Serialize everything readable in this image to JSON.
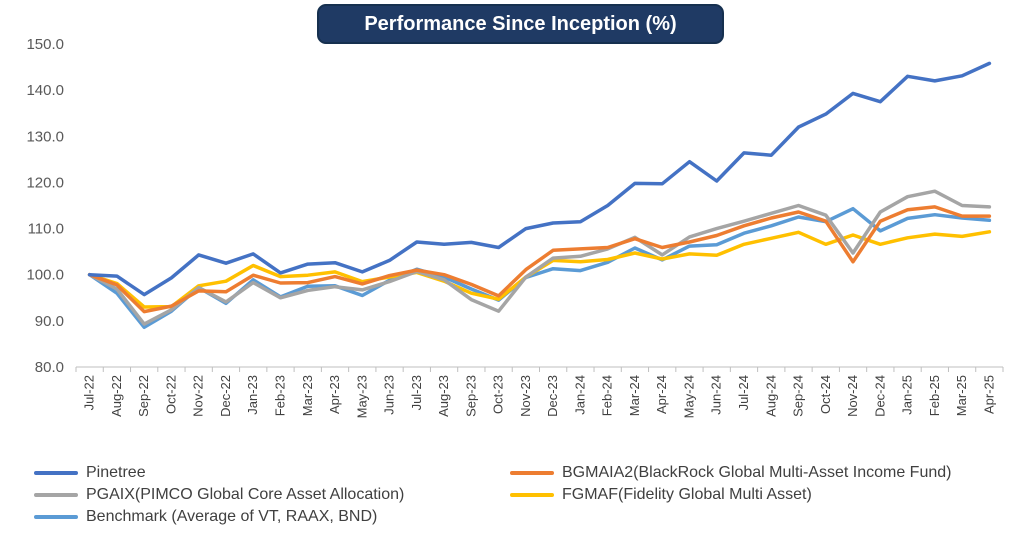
{
  "title": "Performance Since Inception (%)",
  "chart_data": {
    "type": "line",
    "title": "Performance Since Inception (%)",
    "xlabel": "",
    "ylabel": "",
    "ylim": [
      80,
      150
    ],
    "yticks": [
      "80.0",
      "90.0",
      "100.0",
      "110.0",
      "120.0",
      "130.0",
      "140.0",
      "150.0"
    ],
    "grid": false,
    "legend_position": "bottom",
    "categories": [
      "Jul-22",
      "Aug-22",
      "Sep-22",
      "Oct-22",
      "Nov-22",
      "Dec-22",
      "Jan-23",
      "Feb-23",
      "Mar-23",
      "Apr-23",
      "May-23",
      "Jun-23",
      "Jul-23",
      "Aug-23",
      "Sep-23",
      "Oct-23",
      "Nov-23",
      "Dec-23",
      "Jan-24",
      "Feb-24",
      "Mar-24",
      "Apr-24",
      "May-24",
      "Jun-24",
      "Jul-24",
      "Aug-24",
      "Sep-24",
      "Oct-24",
      "Nov-24",
      "Dec-24",
      "Jan-25",
      "Feb-25",
      "Mar-25",
      "Apr-25"
    ],
    "series": [
      {
        "name": "Pinetree",
        "color": "#4472c4",
        "values": [
          100.0,
          99.7,
          95.7,
          99.3,
          104.3,
          102.5,
          104.5,
          100.4,
          102.3,
          102.6,
          100.6,
          103.1,
          107.1,
          106.6,
          107.0,
          105.9,
          110.0,
          111.2,
          111.5,
          115.0,
          119.8,
          119.7,
          124.5,
          120.3,
          126.4,
          125.9,
          132.0,
          134.8,
          139.3,
          137.5,
          143.0,
          142.0,
          143.1,
          145.8
        ]
      },
      {
        "name": "BGMAIA2(BlackRock Global Multi-Asset Income Fund)",
        "color": "#ed7d31",
        "values": [
          100.0,
          97.8,
          92.0,
          93.2,
          96.5,
          96.3,
          99.9,
          98.2,
          98.3,
          99.6,
          98.0,
          99.8,
          101.0,
          100.0,
          97.9,
          95.4,
          101.1,
          105.3,
          105.6,
          105.9,
          107.8,
          105.9,
          107.1,
          108.5,
          110.6,
          112.3,
          113.6,
          111.6,
          102.8,
          111.6,
          114.1,
          114.7,
          112.7,
          112.7
        ]
      },
      {
        "name": "PGAIX(PIMCO Global Core Asset Allocation)",
        "color": "#a5a5a5",
        "values": [
          100.0,
          96.9,
          89.3,
          92.4,
          97.2,
          94.1,
          98.3,
          95.0,
          96.6,
          97.4,
          96.7,
          98.5,
          100.7,
          98.9,
          94.6,
          92.1,
          99.5,
          103.6,
          104.0,
          105.6,
          108.1,
          104.3,
          108.2,
          110.0,
          111.6,
          113.3,
          115.0,
          112.9,
          104.7,
          113.6,
          116.9,
          118.1,
          115.0,
          114.7
        ]
      },
      {
        "name": "FGMAF(Fidelity Global Multi Asset)",
        "color": "#ffc000",
        "values": [
          100.0,
          98.1,
          93.0,
          93.1,
          97.6,
          98.6,
          102.0,
          99.6,
          99.9,
          100.6,
          98.5,
          99.5,
          100.5,
          98.6,
          96.0,
          94.7,
          99.5,
          103.1,
          102.8,
          103.3,
          104.7,
          103.4,
          104.5,
          104.2,
          106.6,
          107.9,
          109.2,
          106.6,
          108.6,
          106.6,
          108.0,
          108.8,
          108.3,
          109.3
        ]
      },
      {
        "name": "Benchmark (Average of VT, RAAX, BND)",
        "color": "#5b9bd5",
        "values": [
          100.0,
          96.0,
          88.6,
          92.1,
          97.2,
          93.8,
          98.9,
          95.2,
          97.5,
          97.6,
          95.5,
          98.8,
          101.2,
          99.5,
          96.9,
          94.5,
          99.4,
          101.3,
          100.9,
          102.7,
          105.8,
          103.2,
          106.2,
          106.5,
          109.0,
          110.6,
          112.5,
          111.5,
          114.3,
          109.5,
          112.2,
          113.0,
          112.3,
          111.8
        ]
      }
    ]
  }
}
